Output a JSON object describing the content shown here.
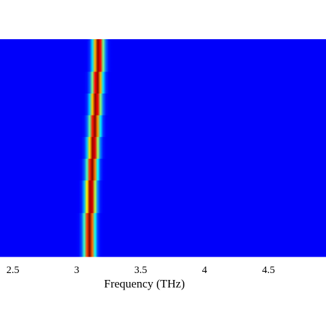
{
  "chart_data": {
    "type": "heatmap",
    "title": "",
    "xlabel": "Frequency (THz)",
    "ylabel": "",
    "xlim": [
      2.4,
      4.95
    ],
    "xticks": [
      2.5,
      3,
      3.5,
      4,
      4.5
    ],
    "xtick_labels": [
      "2.5",
      "3",
      "3.5",
      "4",
      "4.5"
    ],
    "colormap": "jet",
    "background_color": "#0a1fb8",
    "rows": [
      {
        "row": 1,
        "peak_center": 3.17,
        "width": 0.06
      },
      {
        "row": 2,
        "peak_center": 3.17,
        "width": 0.06
      },
      {
        "row": 3,
        "peak_center": 3.17,
        "width": 0.06
      },
      {
        "row": 4,
        "peak_center": 3.16,
        "width": 0.06
      },
      {
        "row": 5,
        "peak_center": 3.16,
        "width": 0.06
      },
      {
        "row": 6,
        "peak_center": 3.15,
        "width": 0.06
      },
      {
        "row": 7,
        "peak_center": 3.15,
        "width": 0.06
      },
      {
        "row": 8,
        "peak_center": 3.14,
        "width": 0.06
      },
      {
        "row": 9,
        "peak_center": 3.14,
        "width": 0.06
      },
      {
        "row": 10,
        "peak_center": 3.13,
        "width": 0.06
      },
      {
        "row": 11,
        "peak_center": 3.13,
        "width": 0.06
      },
      {
        "row": 12,
        "peak_center": 3.12,
        "width": 0.06
      },
      {
        "row": 13,
        "peak_center": 3.12,
        "width": 0.06
      },
      {
        "row": 14,
        "peak_center": 3.11,
        "width": 0.06
      },
      {
        "row": 15,
        "peak_center": 3.11,
        "width": 0.06
      },
      {
        "row": 16,
        "peak_center": 3.11,
        "width": 0.06
      },
      {
        "row": 17,
        "peak_center": 3.1,
        "width": 0.06
      },
      {
        "row": 18,
        "peak_center": 3.1,
        "width": 0.06
      },
      {
        "row": 19,
        "peak_center": 3.1,
        "width": 0.06
      },
      {
        "row": 20,
        "peak_center": 3.1,
        "width": 0.06
      }
    ]
  }
}
